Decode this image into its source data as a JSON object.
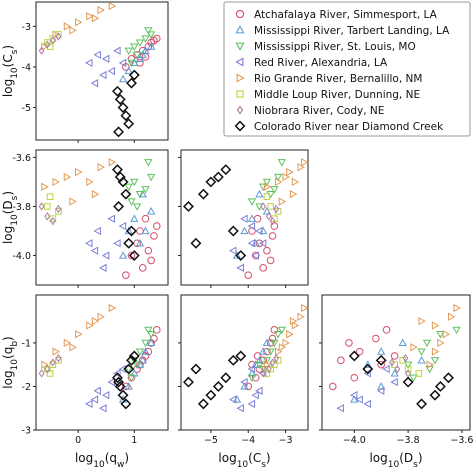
{
  "colors": {
    "Atchafalaya River, Simmesport, LA": "#d64f6a",
    "Mississippi River, Tarbert Landing, LA": "#5b9bd5",
    "Mississippi River, St. Louis, MO": "#5ec25e",
    "Red River, Alexandria, LA": "#7b7fd6",
    "Rio Grande River, Bernalillo, NM": "#e39a55",
    "Middle Loup River, Dunning, NE": "#b9d43a",
    "Niobrara River, Cody, NE": "#b07aa8",
    "Colorado River near Diamond Creek": "#111111"
  },
  "chart_data": {
    "type": "scatter",
    "layout": "pair-plot (lower triangle)",
    "variables": [
      "log10(qw)",
      "log10(Cs)",
      "log10(Ds)",
      "log10(qb)"
    ],
    "axis_labels": {
      "x": [
        "log$_{10}$(q$_w$)",
        "log$_{10}$(C$_s$)",
        "log$_{10}$(D$_s$)"
      ],
      "y": [
        "log$_{10}$(C$_s$)",
        "log$_{10}$(D$_s$)",
        "log$_{10}$(q$_b$)"
      ],
      "x_text": [
        "log10(qw)",
        "log10(Cs)",
        "log10(Ds)"
      ],
      "y_text": [
        "log10(Cs)",
        "log10(Ds)",
        "log10(qb)"
      ]
    },
    "ranges": {
      "qw": [
        -0.75,
        1.6
      ],
      "Cs": [
        -5.8,
        -2.4
      ],
      "Ds": [
        -4.12,
        -3.57
      ],
      "qb": [
        -3.0,
        0.1
      ]
    },
    "ticks": {
      "qw": [
        0,
        1
      ],
      "Cs": [
        -5,
        -4,
        -3
      ],
      "Ds": [
        -4.0,
        -3.8,
        -3.6
      ],
      "qb": [
        -3,
        -2,
        -1
      ]
    },
    "tick_labels": {
      "qw": [
        "0",
        "1"
      ],
      "Cs_y": [
        "-5",
        "-4",
        "-3"
      ],
      "Cs_x": [
        "−5",
        "−4",
        "−3"
      ],
      "Ds_y": [
        "-4.0",
        "-3.8",
        "-3.6"
      ],
      "Ds_x": [
        "−4.0",
        "−3.8",
        "−3.6"
      ],
      "qb": [
        "-3",
        "-2",
        "-1"
      ]
    },
    "legend": {
      "placement": "top-right",
      "entries": [
        {
          "name": "Atchafalaya River, Simmesport, LA",
          "marker": "circle"
        },
        {
          "name": "Mississippi River, Tarbert Landing, LA",
          "marker": "triangle-up"
        },
        {
          "name": "Mississippi River, St. Louis, MO",
          "marker": "triangle-down"
        },
        {
          "name": "Red River, Alexandria, LA",
          "marker": "triangle-left"
        },
        {
          "name": "Rio Grande River, Bernalillo, NM",
          "marker": "triangle-right"
        },
        {
          "name": "Middle Loup River, Dunning, NE",
          "marker": "square"
        },
        {
          "name": "Niobrara River, Cody, NE",
          "marker": "diamond-thin"
        },
        {
          "name": "Colorado River near Diamond Creek",
          "marker": "diamond"
        }
      ]
    },
    "series": [
      {
        "name": "Atchafalaya River, Simmesport, LA",
        "points": [
          {
            "qw": 0.95,
            "Cs": -3.8,
            "Ds": -4.0,
            "qb": -1.8
          },
          {
            "qw": 1.05,
            "Cs": -3.7,
            "Ds": -3.95,
            "qb": -1.6
          },
          {
            "qw": 1.15,
            "Cs": -3.6,
            "Ds": -4.05,
            "qb": -1.4
          },
          {
            "qw": 1.25,
            "Cs": -3.5,
            "Ds": -3.98,
            "qb": -1.2
          },
          {
            "qw": 1.3,
            "Cs": -3.4,
            "Ds": -4.02,
            "qb": -1.0
          },
          {
            "qw": 1.35,
            "Cs": -3.35,
            "Ds": -3.92,
            "qb": -0.9
          },
          {
            "qw": 1.4,
            "Cs": -3.3,
            "Ds": -3.88,
            "qb": -0.7
          },
          {
            "qw": 0.85,
            "Cs": -4.0,
            "Ds": -4.08,
            "qb": -2.0
          },
          {
            "qw": 1.1,
            "Cs": -3.9,
            "Ds": -3.9,
            "qb": -1.5
          },
          {
            "qw": 1.2,
            "Cs": -3.75,
            "Ds": -3.85,
            "qb": -1.3
          }
        ]
      },
      {
        "name": "Mississippi River, Tarbert Landing, LA",
        "points": [
          {
            "qw": 0.9,
            "Cs": -4.1,
            "Ds": -3.9,
            "qb": -2.0
          },
          {
            "qw": 1.0,
            "Cs": -3.9,
            "Ds": -3.85,
            "qb": -1.7
          },
          {
            "qw": 1.1,
            "Cs": -3.8,
            "Ds": -3.95,
            "qb": -1.5
          },
          {
            "qw": 1.2,
            "Cs": -3.6,
            "Ds": -3.9,
            "qb": -1.2
          },
          {
            "qw": 1.3,
            "Cs": -3.5,
            "Ds": -3.82,
            "qb": -1.0
          },
          {
            "qw": 0.8,
            "Cs": -4.3,
            "Ds": -4.0,
            "qb": -2.3
          },
          {
            "qw": 1.15,
            "Cs": -3.7,
            "Ds": -3.75,
            "qb": -1.4
          }
        ]
      },
      {
        "name": "Mississippi River, St. Louis, MO",
        "points": [
          {
            "qw": 0.9,
            "Cs": -3.6,
            "Ds": -3.72,
            "qb": -1.6
          },
          {
            "qw": 1.0,
            "Cs": -3.5,
            "Ds": -3.7,
            "qb": -1.4
          },
          {
            "qw": 1.1,
            "Cs": -3.4,
            "Ds": -3.75,
            "qb": -1.2
          },
          {
            "qw": 1.2,
            "Cs": -3.3,
            "Ds": -3.73,
            "qb": -1.0
          },
          {
            "qw": 1.3,
            "Cs": -3.2,
            "Ds": -3.68,
            "qb": -0.8
          },
          {
            "qw": 1.25,
            "Cs": -3.1,
            "Ds": -3.62,
            "qb": -0.7
          },
          {
            "qw": 1.05,
            "Cs": -3.7,
            "Ds": -3.8,
            "qb": -1.5
          },
          {
            "qw": 0.95,
            "Cs": -3.9,
            "Ds": -3.78,
            "qb": -1.8
          }
        ]
      },
      {
        "name": "Red River, Alexandria, LA",
        "points": [
          {
            "qw": 0.2,
            "Cs": -3.9,
            "Ds": -3.95,
            "qb": -2.4
          },
          {
            "qw": 0.35,
            "Cs": -3.7,
            "Ds": -3.9,
            "qb": -2.1
          },
          {
            "qw": 0.5,
            "Cs": -3.8,
            "Ds": -4.0,
            "qb": -2.2
          },
          {
            "qw": 0.6,
            "Cs": -4.1,
            "Ds": -3.85,
            "qb": -1.9
          },
          {
            "qw": 0.7,
            "Cs": -3.6,
            "Ds": -3.95,
            "qb": -1.7
          },
          {
            "qw": 0.45,
            "Cs": -4.2,
            "Ds": -4.05,
            "qb": -2.5
          },
          {
            "qw": 0.8,
            "Cs": -3.9,
            "Ds": -3.88,
            "qb": -1.6
          },
          {
            "qw": 0.3,
            "Cs": -4.4,
            "Ds": -3.98,
            "qb": -2.3
          }
        ]
      },
      {
        "name": "Rio Grande River, Bernalillo, NM",
        "points": [
          {
            "qw": -0.6,
            "Cs": -3.5,
            "Ds": -3.72,
            "qb": -1.5
          },
          {
            "qw": -0.4,
            "Cs": -3.2,
            "Ds": -3.7,
            "qb": -1.2
          },
          {
            "qw": -0.2,
            "Cs": -3.0,
            "Ds": -3.68,
            "qb": -1.0
          },
          {
            "qw": 0.0,
            "Cs": -2.9,
            "Ds": -3.66,
            "qb": -0.8
          },
          {
            "qw": 0.2,
            "Cs": -2.75,
            "Ds": -3.7,
            "qb": -0.6
          },
          {
            "qw": 0.4,
            "Cs": -2.6,
            "Ds": -3.64,
            "qb": -0.4
          },
          {
            "qw": 0.6,
            "Cs": -2.5,
            "Ds": -3.62,
            "qb": -0.2
          },
          {
            "qw": -0.1,
            "Cs": -3.1,
            "Ds": -3.78,
            "qb": -1.1
          },
          {
            "qw": 0.3,
            "Cs": -2.8,
            "Ds": -3.75,
            "qb": -0.5
          }
        ]
      },
      {
        "name": "Middle Loup River, Dunning, NE",
        "points": [
          {
            "qw": -0.55,
            "Cs": -3.4,
            "Ds": -3.8,
            "qb": -1.6
          },
          {
            "qw": -0.45,
            "Cs": -3.3,
            "Ds": -3.85,
            "qb": -1.5
          },
          {
            "qw": -0.35,
            "Cs": -3.2,
            "Ds": -3.82,
            "qb": -1.4
          },
          {
            "qw": -0.5,
            "Cs": -3.5,
            "Ds": -3.76,
            "qb": -1.7
          }
        ]
      },
      {
        "name": "Niobrara River, Cody, NE",
        "points": [
          {
            "qw": -0.65,
            "Cs": -3.6,
            "Ds": -3.8,
            "qb": -1.7
          },
          {
            "qw": -0.55,
            "Cs": -3.45,
            "Ds": -3.84,
            "qb": -1.6
          },
          {
            "qw": -0.45,
            "Cs": -3.35,
            "Ds": -3.86,
            "qb": -1.45
          },
          {
            "qw": -0.35,
            "Cs": -3.25,
            "Ds": -3.81,
            "qb": -1.35
          }
        ]
      },
      {
        "name": "Colorado River near Diamond Creek",
        "points": [
          {
            "qw": 0.7,
            "Cs": -4.6,
            "Ds": -3.65,
            "qb": -1.8
          },
          {
            "qw": 0.75,
            "Cs": -4.8,
            "Ds": -3.68,
            "qb": -2.0
          },
          {
            "qw": 0.8,
            "Cs": -5.0,
            "Ds": -3.7,
            "qb": -2.2
          },
          {
            "qw": 0.85,
            "Cs": -5.2,
            "Ds": -3.75,
            "qb": -2.4
          },
          {
            "qw": 0.9,
            "Cs": -5.4,
            "Ds": -3.95,
            "qb": -1.6
          },
          {
            "qw": 0.95,
            "Cs": -4.4,
            "Ds": -3.9,
            "qb": -1.4
          },
          {
            "qw": 1.0,
            "Cs": -4.2,
            "Ds": -4.0,
            "qb": -1.3
          },
          {
            "qw": 0.72,
            "Cs": -5.6,
            "Ds": -3.8,
            "qb": -1.9
          }
        ]
      }
    ]
  }
}
